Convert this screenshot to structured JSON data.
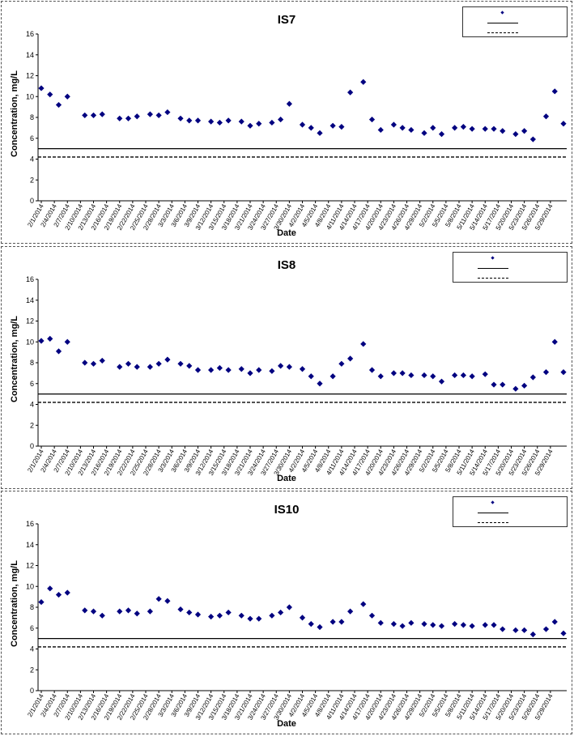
{
  "chart_data": [
    {
      "type": "scatter",
      "title": "IS7",
      "xlabel": "Date",
      "ylabel": "Concentration, mg/L",
      "ylim": [
        0,
        16
      ],
      "yticks": [
        0,
        2,
        4,
        6,
        8,
        10,
        12,
        14,
        16
      ],
      "grid": false,
      "legend_position": "top-right",
      "tick_labels": [
        "2/1/2014",
        "2/4/2014",
        "2/7/2014",
        "2/10/2014",
        "2/13/2014",
        "2/16/2014",
        "2/19/2014",
        "2/22/2014",
        "2/25/2014",
        "2/28/2014",
        "3/3/2014",
        "3/6/2014",
        "3/9/2014",
        "3/12/2014",
        "3/15/2014",
        "3/18/2014",
        "3/21/2014",
        "3/24/2014",
        "3/27/2014",
        "3/30/2014",
        "4/2/2014",
        "4/5/2014",
        "4/8/2014",
        "4/11/2014",
        "4/14/2014",
        "4/17/2014",
        "4/20/2014",
        "4/23/2014",
        "4/26/2014",
        "4/29/2014",
        "5/2/2014",
        "5/5/2014",
        "5/8/2014",
        "5/11/2014",
        "5/14/2014",
        "5/17/2014",
        "5/20/2014",
        "5/23/2014",
        "5/26/2014",
        "5/29/2014"
      ],
      "points": [
        {
          "x": "2/1/2014",
          "y": 10.8
        },
        {
          "x": "2/3/2014",
          "y": 10.2
        },
        {
          "x": "2/5/2014",
          "y": 9.2
        },
        {
          "x": "2/7/2014",
          "y": 10.0
        },
        {
          "x": "2/11/2014",
          "y": 8.2
        },
        {
          "x": "2/13/2014",
          "y": 8.2
        },
        {
          "x": "2/15/2014",
          "y": 8.3
        },
        {
          "x": "2/19/2014",
          "y": 7.9
        },
        {
          "x": "2/21/2014",
          "y": 7.9
        },
        {
          "x": "2/23/2014",
          "y": 8.1
        },
        {
          "x": "2/26/2014",
          "y": 8.3
        },
        {
          "x": "2/28/2014",
          "y": 8.2
        },
        {
          "x": "3/2/2014",
          "y": 8.5
        },
        {
          "x": "3/5/2014",
          "y": 7.9
        },
        {
          "x": "3/7/2014",
          "y": 7.7
        },
        {
          "x": "3/9/2014",
          "y": 7.7
        },
        {
          "x": "3/12/2014",
          "y": 7.6
        },
        {
          "x": "3/14/2014",
          "y": 7.5
        },
        {
          "x": "3/16/2014",
          "y": 7.7
        },
        {
          "x": "3/19/2014",
          "y": 7.6
        },
        {
          "x": "3/21/2014",
          "y": 7.2
        },
        {
          "x": "3/23/2014",
          "y": 7.4
        },
        {
          "x": "3/26/2014",
          "y": 7.5
        },
        {
          "x": "3/28/2014",
          "y": 7.8
        },
        {
          "x": "3/30/2014",
          "y": 9.3
        },
        {
          "x": "4/2/2014",
          "y": 7.3
        },
        {
          "x": "4/4/2014",
          "y": 7.0
        },
        {
          "x": "4/6/2014",
          "y": 6.5
        },
        {
          "x": "4/9/2014",
          "y": 7.2
        },
        {
          "x": "4/11/2014",
          "y": 7.1
        },
        {
          "x": "4/13/2014",
          "y": 10.4
        },
        {
          "x": "4/16/2014",
          "y": 11.4
        },
        {
          "x": "4/18/2014",
          "y": 7.8
        },
        {
          "x": "4/20/2014",
          "y": 6.8
        },
        {
          "x": "4/23/2014",
          "y": 7.3
        },
        {
          "x": "4/25/2014",
          "y": 7.0
        },
        {
          "x": "4/27/2014",
          "y": 6.8
        },
        {
          "x": "4/30/2014",
          "y": 6.5
        },
        {
          "x": "5/2/2014",
          "y": 7.0
        },
        {
          "x": "5/4/2014",
          "y": 6.4
        },
        {
          "x": "5/7/2014",
          "y": 7.0
        },
        {
          "x": "5/9/2014",
          "y": 7.1
        },
        {
          "x": "5/11/2014",
          "y": 6.9
        },
        {
          "x": "5/14/2014",
          "y": 6.9
        },
        {
          "x": "5/16/2014",
          "y": 6.9
        },
        {
          "x": "5/18/2014",
          "y": 6.7
        },
        {
          "x": "5/21/2014",
          "y": 6.4
        },
        {
          "x": "5/23/2014",
          "y": 6.7
        },
        {
          "x": "5/25/2014",
          "y": 5.9
        },
        {
          "x": "5/28/2014",
          "y": 8.1
        },
        {
          "x": "5/30/2014",
          "y": 10.5
        },
        {
          "x": "6/1/2014",
          "y": 7.4
        }
      ],
      "reference_lines": [
        {
          "style": "solid",
          "y": 5.0
        },
        {
          "style": "dashed",
          "y": 4.2
        }
      ]
    },
    {
      "type": "scatter",
      "title": "IS8",
      "xlabel": "Date",
      "ylabel": "Concentration, mg/L",
      "ylim": [
        0,
        16
      ],
      "yticks": [
        0,
        2,
        4,
        6,
        8,
        10,
        12,
        14,
        16
      ],
      "grid": false,
      "legend_position": "top-right",
      "tick_labels": [
        "2/1/2014",
        "2/4/2014",
        "2/7/2014",
        "2/10/2014",
        "2/13/2014",
        "2/16/2014",
        "2/19/2014",
        "2/22/2014",
        "2/25/2014",
        "2/28/2014",
        "3/3/2014",
        "3/6/2014",
        "3/9/2014",
        "3/12/2014",
        "3/15/2014",
        "3/18/2014",
        "3/21/2014",
        "3/24/2014",
        "3/27/2014",
        "3/30/2014",
        "4/2/2014",
        "4/5/2014",
        "4/8/2014",
        "4/11/2014",
        "4/14/2014",
        "4/17/2014",
        "4/20/2014",
        "4/23/2014",
        "4/26/2014",
        "4/29/2014",
        "5/2/2014",
        "5/5/2014",
        "5/8/2014",
        "5/11/2014",
        "5/14/2014",
        "5/17/2014",
        "5/20/2014",
        "5/23/2014",
        "5/26/2014",
        "5/29/2014"
      ],
      "points": [
        {
          "x": "2/1/2014",
          "y": 10.1
        },
        {
          "x": "2/3/2014",
          "y": 10.3
        },
        {
          "x": "2/5/2014",
          "y": 9.1
        },
        {
          "x": "2/7/2014",
          "y": 10.0
        },
        {
          "x": "2/11/2014",
          "y": 8.0
        },
        {
          "x": "2/13/2014",
          "y": 7.9
        },
        {
          "x": "2/15/2014",
          "y": 8.2
        },
        {
          "x": "2/19/2014",
          "y": 7.6
        },
        {
          "x": "2/21/2014",
          "y": 7.9
        },
        {
          "x": "2/23/2014",
          "y": 7.6
        },
        {
          "x": "2/26/2014",
          "y": 7.6
        },
        {
          "x": "2/28/2014",
          "y": 7.9
        },
        {
          "x": "3/2/2014",
          "y": 8.3
        },
        {
          "x": "3/5/2014",
          "y": 7.9
        },
        {
          "x": "3/7/2014",
          "y": 7.7
        },
        {
          "x": "3/9/2014",
          "y": 7.3
        },
        {
          "x": "3/12/2014",
          "y": 7.3
        },
        {
          "x": "3/14/2014",
          "y": 7.5
        },
        {
          "x": "3/16/2014",
          "y": 7.3
        },
        {
          "x": "3/19/2014",
          "y": 7.4
        },
        {
          "x": "3/21/2014",
          "y": 7.0
        },
        {
          "x": "3/23/2014",
          "y": 7.3
        },
        {
          "x": "3/26/2014",
          "y": 7.2
        },
        {
          "x": "3/28/2014",
          "y": 7.7
        },
        {
          "x": "3/30/2014",
          "y": 7.6
        },
        {
          "x": "4/2/2014",
          "y": 7.4
        },
        {
          "x": "4/4/2014",
          "y": 6.7
        },
        {
          "x": "4/6/2014",
          "y": 6.0
        },
        {
          "x": "4/9/2014",
          "y": 6.7
        },
        {
          "x": "4/11/2014",
          "y": 7.9
        },
        {
          "x": "4/13/2014",
          "y": 8.4
        },
        {
          "x": "4/16/2014",
          "y": 9.8
        },
        {
          "x": "4/18/2014",
          "y": 7.3
        },
        {
          "x": "4/20/2014",
          "y": 6.7
        },
        {
          "x": "4/23/2014",
          "y": 7.0
        },
        {
          "x": "4/25/2014",
          "y": 7.0
        },
        {
          "x": "4/27/2014",
          "y": 6.8
        },
        {
          "x": "4/30/2014",
          "y": 6.8
        },
        {
          "x": "5/2/2014",
          "y": 6.7
        },
        {
          "x": "5/4/2014",
          "y": 6.2
        },
        {
          "x": "5/7/2014",
          "y": 6.8
        },
        {
          "x": "5/9/2014",
          "y": 6.8
        },
        {
          "x": "5/11/2014",
          "y": 6.7
        },
        {
          "x": "5/14/2014",
          "y": 6.9
        },
        {
          "x": "5/16/2014",
          "y": 5.9
        },
        {
          "x": "5/18/2014",
          "y": 5.9
        },
        {
          "x": "5/21/2014",
          "y": 5.5
        },
        {
          "x": "5/23/2014",
          "y": 5.8
        },
        {
          "x": "5/25/2014",
          "y": 6.6
        },
        {
          "x": "5/28/2014",
          "y": 7.1
        },
        {
          "x": "5/30/2014",
          "y": 10.0
        },
        {
          "x": "6/1/2014",
          "y": 7.1
        }
      ],
      "reference_lines": [
        {
          "style": "solid",
          "y": 5.0
        },
        {
          "style": "dashed",
          "y": 4.2
        }
      ]
    },
    {
      "type": "scatter",
      "title": "IS10",
      "xlabel": "Date",
      "ylabel": "Concentration, mg/L",
      "ylim": [
        0,
        16
      ],
      "yticks": [
        0,
        2,
        4,
        6,
        8,
        10,
        12,
        14,
        16
      ],
      "grid": false,
      "legend_position": "top-right",
      "tick_labels": [
        "2/1/2014",
        "2/4/2014",
        "2/7/2014",
        "2/10/2014",
        "2/13/2014",
        "2/16/2014",
        "2/19/2014",
        "2/22/2014",
        "2/25/2014",
        "2/28/2014",
        "3/3/2014",
        "3/6/2014",
        "3/9/2014",
        "3/12/2014",
        "3/15/2014",
        "3/18/2014",
        "3/21/2014",
        "3/24/2014",
        "3/27/2014",
        "3/30/2014",
        "4/2/2014",
        "4/5/2014",
        "4/8/2014",
        "4/11/2014",
        "4/14/2014",
        "4/17/2014",
        "4/20/2014",
        "4/23/2014",
        "4/26/2014",
        "4/29/2014",
        "5/2/2014",
        "5/5/2014",
        "5/8/2014",
        "5/11/2014",
        "5/14/2014",
        "5/17/2014",
        "5/20/2014",
        "5/23/2014",
        "5/26/2014",
        "5/29/2014"
      ],
      "points": [
        {
          "x": "2/1/2014",
          "y": 8.5
        },
        {
          "x": "2/3/2014",
          "y": 9.8
        },
        {
          "x": "2/5/2014",
          "y": 9.2
        },
        {
          "x": "2/7/2014",
          "y": 9.4
        },
        {
          "x": "2/11/2014",
          "y": 7.7
        },
        {
          "x": "2/13/2014",
          "y": 7.6
        },
        {
          "x": "2/15/2014",
          "y": 7.2
        },
        {
          "x": "2/19/2014",
          "y": 7.6
        },
        {
          "x": "2/21/2014",
          "y": 7.7
        },
        {
          "x": "2/23/2014",
          "y": 7.4
        },
        {
          "x": "2/26/2014",
          "y": 7.6
        },
        {
          "x": "2/28/2014",
          "y": 8.8
        },
        {
          "x": "3/2/2014",
          "y": 8.6
        },
        {
          "x": "3/5/2014",
          "y": 7.8
        },
        {
          "x": "3/7/2014",
          "y": 7.5
        },
        {
          "x": "3/9/2014",
          "y": 7.3
        },
        {
          "x": "3/12/2014",
          "y": 7.1
        },
        {
          "x": "3/14/2014",
          "y": 7.2
        },
        {
          "x": "3/16/2014",
          "y": 7.5
        },
        {
          "x": "3/19/2014",
          "y": 7.2
        },
        {
          "x": "3/21/2014",
          "y": 6.9
        },
        {
          "x": "3/23/2014",
          "y": 6.9
        },
        {
          "x": "3/26/2014",
          "y": 7.2
        },
        {
          "x": "3/28/2014",
          "y": 7.5
        },
        {
          "x": "3/30/2014",
          "y": 8.0
        },
        {
          "x": "4/2/2014",
          "y": 7.0
        },
        {
          "x": "4/4/2014",
          "y": 6.4
        },
        {
          "x": "4/6/2014",
          "y": 6.1
        },
        {
          "x": "4/9/2014",
          "y": 6.6
        },
        {
          "x": "4/11/2014",
          "y": 6.6
        },
        {
          "x": "4/13/2014",
          "y": 7.6
        },
        {
          "x": "4/16/2014",
          "y": 8.3
        },
        {
          "x": "4/18/2014",
          "y": 7.2
        },
        {
          "x": "4/20/2014",
          "y": 6.5
        },
        {
          "x": "4/23/2014",
          "y": 6.4
        },
        {
          "x": "4/25/2014",
          "y": 6.2
        },
        {
          "x": "4/27/2014",
          "y": 6.5
        },
        {
          "x": "4/30/2014",
          "y": 6.4
        },
        {
          "x": "5/2/2014",
          "y": 6.3
        },
        {
          "x": "5/4/2014",
          "y": 6.2
        },
        {
          "x": "5/7/2014",
          "y": 6.4
        },
        {
          "x": "5/9/2014",
          "y": 6.3
        },
        {
          "x": "5/11/2014",
          "y": 6.2
        },
        {
          "x": "5/14/2014",
          "y": 6.3
        },
        {
          "x": "5/16/2014",
          "y": 6.3
        },
        {
          "x": "5/18/2014",
          "y": 5.9
        },
        {
          "x": "5/21/2014",
          "y": 5.8
        },
        {
          "x": "5/23/2014",
          "y": 5.8
        },
        {
          "x": "5/25/2014",
          "y": 5.4
        },
        {
          "x": "5/28/2014",
          "y": 5.9
        },
        {
          "x": "5/30/2014",
          "y": 6.6
        },
        {
          "x": "6/1/2014",
          "y": 5.5
        }
      ],
      "reference_lines": [
        {
          "style": "solid",
          "y": 5.0
        },
        {
          "style": "dashed",
          "y": 4.2
        }
      ]
    }
  ],
  "colors": {
    "marker": "#000080",
    "line": "#000000",
    "border": "#555555"
  }
}
